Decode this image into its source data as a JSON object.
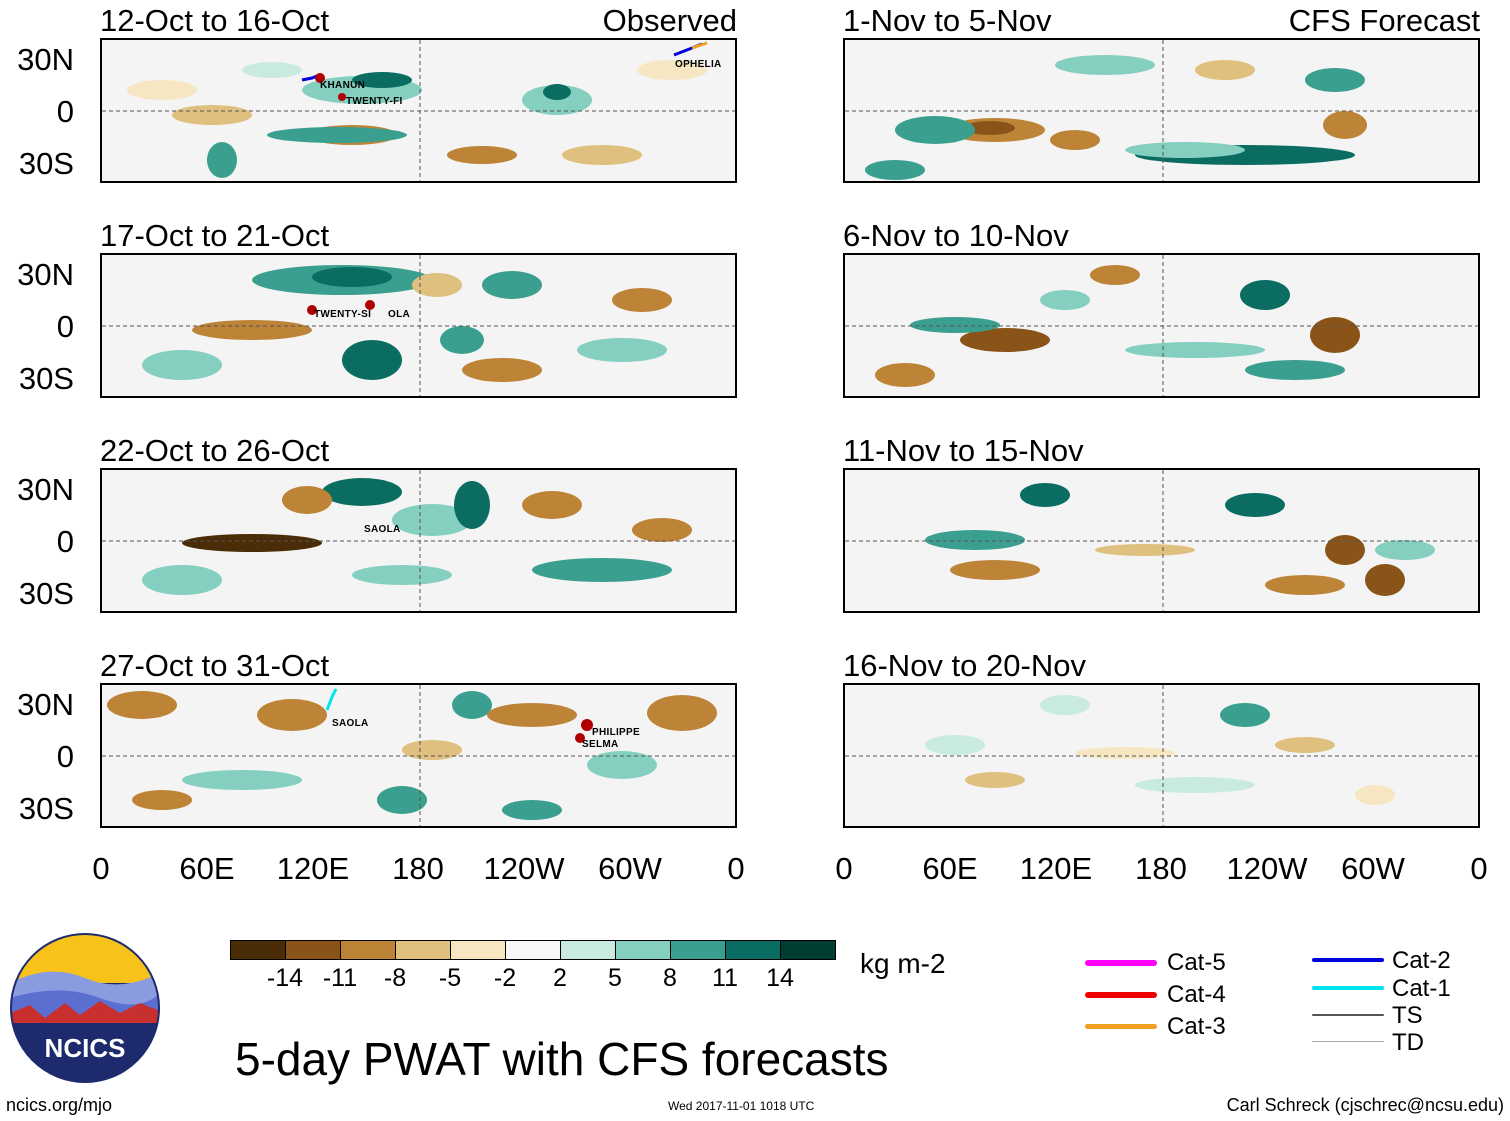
{
  "panels": [
    {
      "title": "12-Oct to 16-Oct",
      "tag": "Observed",
      "storms": [
        "KHANUN",
        "TWENTY-FI",
        "OPHELIA"
      ]
    },
    {
      "title": "17-Oct to 21-Oct",
      "tag": "",
      "storms": [
        "TWENTY-SI",
        "OLA"
      ]
    },
    {
      "title": "22-Oct to 26-Oct",
      "tag": "",
      "storms": [
        "SAOLA"
      ]
    },
    {
      "title": "27-Oct to 31-Oct",
      "tag": "",
      "storms": [
        "SAOLA",
        "PHILIPPE",
        "SELMA"
      ]
    },
    {
      "title": "1-Nov to 5-Nov",
      "tag": "CFS Forecast",
      "storms": []
    },
    {
      "title": "6-Nov to 10-Nov",
      "tag": "",
      "storms": []
    },
    {
      "title": "11-Nov to 15-Nov",
      "tag": "",
      "storms": []
    },
    {
      "title": "16-Nov to 20-Nov",
      "tag": "",
      "storms": []
    }
  ],
  "lat_labels": [
    "30N",
    "0",
    "30S"
  ],
  "lon_labels": [
    "0",
    "60E",
    "120E",
    "180",
    "120W",
    "60W",
    "0"
  ],
  "colorbar": {
    "unit": "kg m-2",
    "ticks": [
      "-14",
      "-11",
      "-8",
      "-5",
      "-2",
      "2",
      "5",
      "8",
      "11",
      "14"
    ],
    "colors": [
      "#4a2d07",
      "#8a5418",
      "#bd8438",
      "#dfc07e",
      "#f6e7c2",
      "#f7f7f7",
      "#c8eae1",
      "#84cfbf",
      "#3a9f8f",
      "#0b6c62",
      "#013d33"
    ]
  },
  "legend": [
    {
      "label": "Cat-5",
      "color": "#ff00ff"
    },
    {
      "label": "Cat-4",
      "color": "#ee0000"
    },
    {
      "label": "Cat-3",
      "color": "#f0a020"
    },
    {
      "label": "Cat-2",
      "color": "#0000dd"
    },
    {
      "label": "Cat-1",
      "color": "#00e5ee"
    },
    {
      "label": "TS",
      "color": "#555555"
    },
    {
      "label": "TD",
      "color": "#aaaaaa"
    }
  ],
  "main_title": "5-day PWAT with CFS forecasts",
  "logo_text": "NCICS",
  "footer": {
    "left": "ncics.org/mjo",
    "center": "Wed 2017-11-01 1018 UTC",
    "right": "Carl Schreck (cjschrec@ncsu.edu)"
  }
}
